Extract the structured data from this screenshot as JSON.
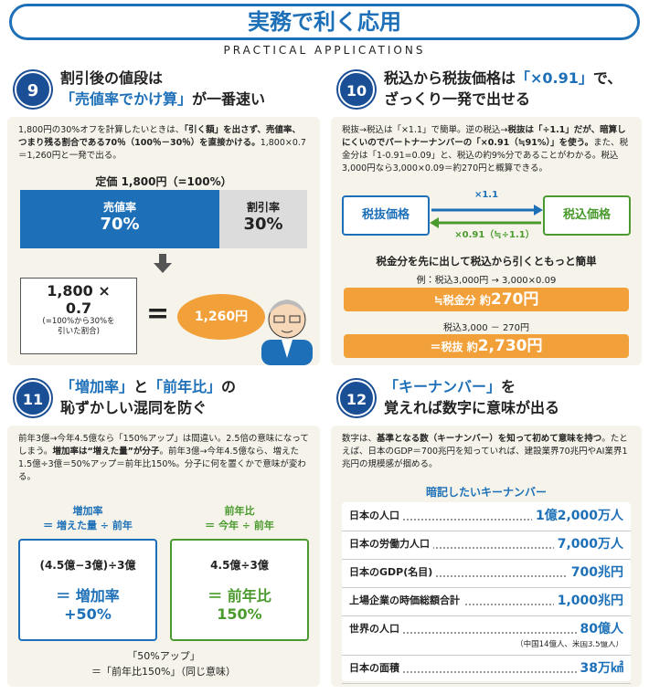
{
  "header": {
    "title": "実務で利く応用",
    "subtitle": "PRACTICAL APPLICATIONS"
  },
  "sections": [
    {
      "number": "9",
      "heading": [
        "割引後の値段は",
        [
          "「売値率でかけ算」",
          "が一番速い"
        ]
      ],
      "body": [
        "1,800円の30%オフを計算したいときは、",
        "「引く額」を出さず、売値率、つまり残る割合である70％（100％－30％）を直接かける。",
        "1,800×0.7＝1,260円と一発で出る。"
      ],
      "bar_label": "定価 1,800円（=100%）",
      "segments": [
        {
          "label": "売値率",
          "value": "70%"
        },
        {
          "label": "割引率",
          "value": "30%"
        }
      ],
      "formula": [
        "1,800 ×",
        "0.7"
      ],
      "formula_note": [
        "(=100%から30%を",
        "引いた割合)"
      ],
      "equals": "=",
      "result": "1,260円"
    },
    {
      "number": "10",
      "heading": [
        [
          "税込から税抜価格は",
          "「×0.91」",
          "で、"
        ],
        "ざっくり一発で出せる"
      ],
      "body": [
        "税抜→税込は「×1.1」で簡単。逆の税込→",
        "税抜は「÷1.1」だが、暗算しにくいのでパートナーナンバーの「×0.91（≒91%）」を使う。",
        "また、税金分は「1-0.91=0.09」と、税込の約9%分であることがわかる。税込3,000円なら3,000×0.09＝約270円と概算できる。"
      ],
      "flow": {
        "left": "税抜価格",
        "right": "税込価格",
        "forward": "×1.1",
        "backward": "×0.91（≒÷1.1）"
      },
      "tip": "税金分を先に出して税込から引くともっと簡単",
      "example": "例：税込3,000円 → 3,000×0.09",
      "step1": [
        "≒税金分 約",
        "270円"
      ],
      "step2_label": "税込3,000 － 270円",
      "step2": [
        "＝税抜 約",
        "2,730円"
      ]
    },
    {
      "number": "11",
      "heading": [
        [
          "「増加率」",
          "と",
          "「前年比」",
          "の"
        ],
        "恥ずかしい混同を防ぐ"
      ],
      "body": [
        "前年3億→今年4.5億なら「150%アップ」は間違い。2.5倍の意味になってしまう。",
        "増加率は“増えた量”が分子",
        "。前年3億→今年4.5億なら、増えた1.5億÷3億＝50%アップ＝前年比150%。分子に何を置くかで意味が変わる。"
      ],
      "columns": [
        {
          "title": "増加率",
          "formula": "＝ 増えた量 ÷ 前年",
          "calc": "(4.5億−3億)÷3億",
          "result_label": "＝ 増加率",
          "result": "+50%"
        },
        {
          "title": "前年比",
          "formula": "＝ 今年 ÷ 前年",
          "calc": "4.5億÷3億",
          "result_label": "＝ 前年比",
          "result": "150%"
        }
      ],
      "footer": [
        "「50%アップ」",
        "＝「前年比150%」（同じ意味）"
      ]
    },
    {
      "number": "12",
      "heading": [
        [
          "「キーナンバー」",
          "を"
        ],
        "覚えれば数字に意味が出る"
      ],
      "body": [
        "数字は、",
        "基準となる数（キーナンバー）を知って初めて意味を持つ",
        "。たとえば、日本のGDP＝700兆円を知っていれば、建設業界70兆円やAI業界1兆円の規模感が掴める。"
      ],
      "list_title": "暗記したいキーナンバー",
      "rows": [
        {
          "label": "日本の人口",
          "value": "1億2,000万人"
        },
        {
          "label": "日本の労働力人口",
          "value": "7,000万人"
        },
        {
          "label": "日本のGDP(名目)",
          "value": "700兆円"
        },
        {
          "label": "上場企業の時価総額合計",
          "value": "1,000兆円"
        },
        {
          "label": "世界の人口",
          "value": "80億人",
          "note": "（中国14億人、米国3.5億人）"
        },
        {
          "label": "日本の面積",
          "value": "38万㎢"
        }
      ]
    }
  ]
}
